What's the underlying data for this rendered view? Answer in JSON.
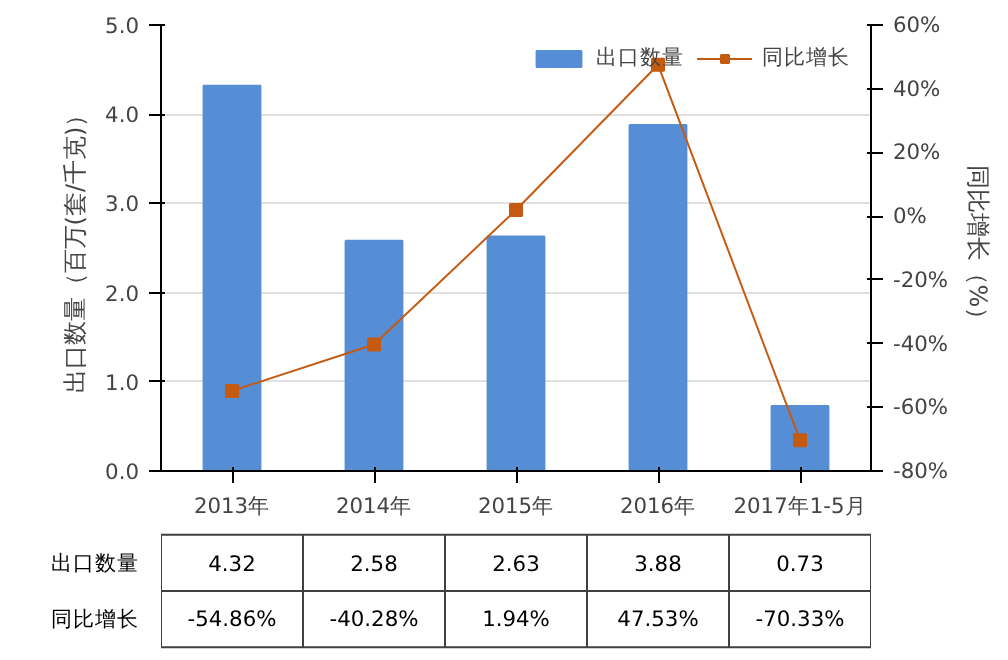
{
  "chart_data": {
    "type": "bar",
    "categories": [
      "2013年",
      "2014年",
      "2015年",
      "2016年",
      "2017年1-5月"
    ],
    "ylabel": "出口数量（百万(套/千克)）",
    "y2label": "同比增长（%）",
    "ylim": [
      0,
      5
    ],
    "yticks": [
      {
        "value": 0,
        "label": "0.0"
      },
      {
        "value": 1,
        "label": "1.0"
      },
      {
        "value": 2,
        "label": "2.0"
      },
      {
        "value": 3,
        "label": "3.0"
      },
      {
        "value": 4,
        "label": "4.0"
      },
      {
        "value": 5,
        "label": "5.0"
      }
    ],
    "y2lim": [
      -80,
      60
    ],
    "y2ticks": [
      {
        "value": -80,
        "label": "-80%"
      },
      {
        "value": -60,
        "label": "-60%"
      },
      {
        "value": -40,
        "label": "-40%"
      },
      {
        "value": -20,
        "label": "-20%"
      },
      {
        "value": 0,
        "label": "0%"
      },
      {
        "value": 20,
        "label": "20%"
      },
      {
        "value": 40,
        "label": "40%"
      },
      {
        "value": 60,
        "label": "60%"
      }
    ],
    "series": [
      {
        "name": "出口数量",
        "color": "#558ed5",
        "values": [
          4.32,
          2.58,
          2.63,
          3.88,
          0.73
        ],
        "value_labels": [
          "4.32",
          "2.58",
          "2.63",
          "3.88",
          "0.73"
        ]
      },
      {
        "name": "同比增长",
        "type": "line",
        "axis": "y2",
        "color": "#c55a11",
        "marker": "square",
        "values": [
          -54.86,
          -40.28,
          1.94,
          47.53,
          -70.33
        ],
        "value_labels": [
          "-54.86%",
          "-40.28%",
          "1.94%",
          "47.53%",
          "-70.33%"
        ]
      }
    ],
    "grid": "y",
    "legend": "top right"
  }
}
